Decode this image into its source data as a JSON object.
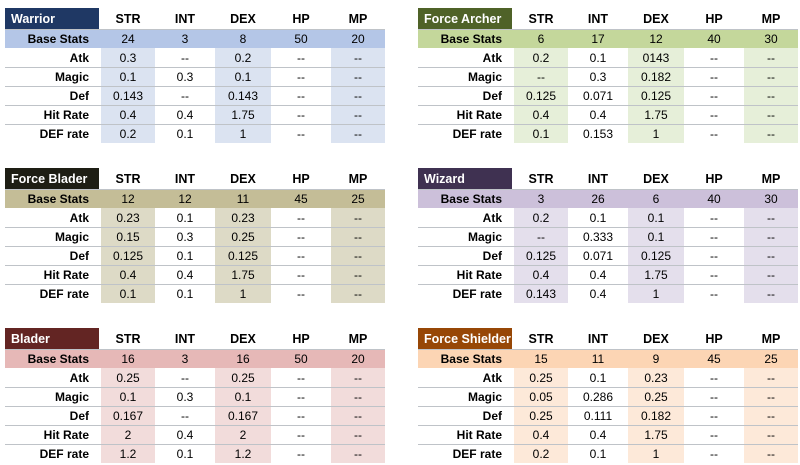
{
  "columns": [
    "STR",
    "INT",
    "DEX",
    "HP",
    "MP"
  ],
  "row_labels": [
    "Base Stats",
    "Atk",
    "Magic",
    "Def",
    "Hit Rate",
    "DEF rate"
  ],
  "tables": [
    {
      "name": "Warrior",
      "title_color": "#1f3864",
      "base_color": "#b4c6e7",
      "stripe_color": "#dbe3f1",
      "base": [
        "24",
        "3",
        "8",
        "50",
        "20"
      ],
      "rows": [
        [
          "0.3",
          "--",
          "0.2",
          "--",
          "--"
        ],
        [
          "0.1",
          "0.3",
          "0.1",
          "--",
          "--"
        ],
        [
          "0.143",
          "--",
          "0.143",
          "--",
          "--"
        ],
        [
          "0.4",
          "0.4",
          "1.75",
          "--",
          "--"
        ],
        [
          "0.2",
          "0.1",
          "1",
          "--",
          "--"
        ]
      ]
    },
    {
      "name": "Force Archer",
      "title_color": "#4f6228",
      "base_color": "#c4d79b",
      "stripe_color": "#e6efd9",
      "base": [
        "6",
        "17",
        "12",
        "40",
        "30"
      ],
      "rows": [
        [
          "0.2",
          "0.1",
          "0143",
          "--",
          "--"
        ],
        [
          "--",
          "0.3",
          "0.182",
          "--",
          "--"
        ],
        [
          "0.125",
          "0.071",
          "0.125",
          "--",
          "--"
        ],
        [
          "0.4",
          "0.4",
          "1.75",
          "--",
          "--"
        ],
        [
          "0.1",
          "0.153",
          "1",
          "--",
          "--"
        ]
      ]
    },
    {
      "name": "Force Blader",
      "title_color": "#1e1e14",
      "base_color": "#c4bd97",
      "stripe_color": "#dddac6",
      "base": [
        "12",
        "12",
        "11",
        "45",
        "25"
      ],
      "rows": [
        [
          "0.23",
          "0.1",
          "0.23",
          "--",
          "--"
        ],
        [
          "0.15",
          "0.3",
          "0.25",
          "--",
          "--"
        ],
        [
          "0.125",
          "0.1",
          "0.125",
          "--",
          "--"
        ],
        [
          "0.4",
          "0.4",
          "1.75",
          "--",
          "--"
        ],
        [
          "0.1",
          "0.1",
          "1",
          "--",
          "--"
        ]
      ]
    },
    {
      "name": "Wizard",
      "title_color": "#3f3151",
      "base_color": "#ccc0da",
      "stripe_color": "#e4dfec",
      "base": [
        "3",
        "26",
        "6",
        "40",
        "30"
      ],
      "rows": [
        [
          "0.2",
          "0.1",
          "0.1",
          "--",
          "--"
        ],
        [
          "--",
          "0.333",
          "0.1",
          "--",
          "--"
        ],
        [
          "0.125",
          "0.071",
          "0.125",
          "--",
          "--"
        ],
        [
          "0.4",
          "0.4",
          "1.75",
          "--",
          "--"
        ],
        [
          "0.143",
          "0.4",
          "1",
          "--",
          "--"
        ]
      ]
    },
    {
      "name": "Blader",
      "title_color": "#632523",
      "base_color": "#e6b8b7",
      "stripe_color": "#f2dcdb",
      "base": [
        "16",
        "3",
        "16",
        "50",
        "20"
      ],
      "rows": [
        [
          "0.25",
          "--",
          "0.25",
          "--",
          "--"
        ],
        [
          "0.1",
          "0.3",
          "0.1",
          "--",
          "--"
        ],
        [
          "0.167",
          "--",
          "0.167",
          "--",
          "--"
        ],
        [
          "2",
          "0.4",
          "2",
          "--",
          "--"
        ],
        [
          "1.2",
          "0.1",
          "1.2",
          "--",
          "--"
        ]
      ]
    },
    {
      "name": "Force Shielder",
      "title_color": "#974706",
      "base_color": "#fcd5b4",
      "stripe_color": "#fde9d9",
      "base": [
        "15",
        "11",
        "9",
        "45",
        "25"
      ],
      "rows": [
        [
          "0.25",
          "0.1",
          "0.23",
          "--",
          "--"
        ],
        [
          "0.05",
          "0.286",
          "0.25",
          "--",
          "--"
        ],
        [
          "0.25",
          "0.111",
          "0.182",
          "--",
          "--"
        ],
        [
          "0.4",
          "0.4",
          "1.75",
          "--",
          "--"
        ],
        [
          "0.2",
          "0.1",
          "1",
          "--",
          "--"
        ]
      ]
    }
  ]
}
